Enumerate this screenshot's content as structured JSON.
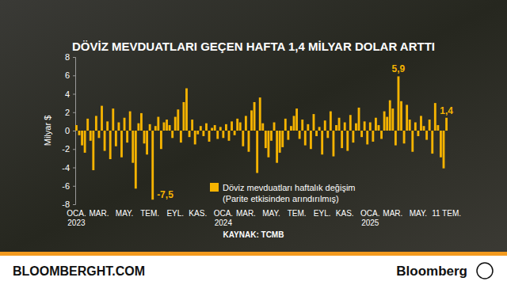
{
  "chart_data": {
    "type": "bar",
    "title": "DÖVİZ MEVDUATLARI GEÇEN HAFTA 1,4 MİLYAR DOLAR ARTTI",
    "y_label": "Milyar $",
    "source": "KAYNAK: TCMB",
    "branding": [
      "BLOOMBERGHT.COM",
      "Bloomberg"
    ],
    "annotations": [
      "(Parite etkisinden arındırılmış)"
    ],
    "categories": [
      "OCA. 2023",
      null,
      null,
      null,
      null,
      null,
      null,
      null,
      "MAR.",
      null,
      null,
      null,
      null,
      null,
      null,
      null,
      null,
      "MAY.",
      null,
      null,
      null,
      null,
      null,
      null,
      null,
      null,
      "TEM.",
      null,
      null,
      null,
      null,
      null,
      null,
      null,
      null,
      "EYL.",
      null,
      null,
      null,
      null,
      null,
      null,
      null,
      "KAS.",
      null,
      null,
      null,
      null,
      null,
      null,
      null,
      null,
      "OCA. 2024",
      null,
      null,
      null,
      null,
      null,
      null,
      null,
      "MAR.",
      null,
      null,
      null,
      null,
      null,
      null,
      null,
      null,
      "MAY.",
      null,
      null,
      null,
      null,
      null,
      null,
      null,
      null,
      "TEM.",
      null,
      null,
      null,
      null,
      null,
      null,
      null,
      null,
      "EYL.",
      null,
      null,
      null,
      null,
      null,
      null,
      null,
      "KAS.",
      null,
      null,
      null,
      null,
      null,
      null,
      null,
      null,
      "OCA. 2025",
      null,
      null,
      null,
      null,
      null,
      null,
      null,
      "MAR.",
      null,
      null,
      null,
      null,
      null,
      null,
      null,
      null,
      "MAY.",
      null,
      null,
      null,
      null,
      null,
      null,
      null,
      null,
      null,
      "11 TEM."
    ],
    "series": [
      {
        "name": "Döviz mevduatları haftalık değişim",
        "color": "#f5b301",
        "values": [
          0.6,
          -0.5,
          -1.6,
          -2.4,
          1.3,
          -1.1,
          -4.3,
          1.6,
          -0.8,
          2.7,
          -2.2,
          1.0,
          -3.1,
          2.4,
          -1.7,
          0.9,
          -2.9,
          1.4,
          -1.3,
          2.1,
          -3.5,
          -6.3,
          0.8,
          1.9,
          -1.4,
          -2.6,
          0.7,
          -7.5,
          0.5,
          1.5,
          -2.0,
          0.9,
          1.2,
          0.6,
          -0.8,
          1.5,
          2.3,
          -1.3,
          3.1,
          4.6,
          -0.7,
          1.2,
          -1.5,
          -0.4,
          0.5,
          -0.6,
          0.8,
          -1.2,
          0.3,
          0.6,
          -0.9,
          0.4,
          -0.8,
          0.7,
          -1.1,
          1.0,
          -0.5,
          1.3,
          0.9,
          -1.7,
          1.6,
          -2.3,
          2.2,
          3.1,
          -4.6,
          3.6,
          0.8,
          -1.9,
          -2.9,
          -1.1,
          0.9,
          -3.5,
          -2.4,
          -1.8,
          1.3,
          -1.0,
          0.5,
          1.6,
          2.4,
          -0.9,
          1.2,
          -1.6,
          0.7,
          -2.0,
          1.8,
          -0.6,
          0.4,
          -2.6,
          1.1,
          -0.8,
          2.1,
          -2.8,
          0.6,
          1.4,
          -1.9,
          0.9,
          -2.2,
          1.7,
          -1.3,
          0.8,
          2.5,
          -0.7,
          1.0,
          -1.5,
          0.9,
          -1.2,
          1.4,
          0.6,
          -0.9,
          2.1,
          1.5,
          3.3,
          2.4,
          -1.6,
          5.9,
          3.2,
          -1.4,
          2.8,
          1.2,
          -2.3,
          0.9,
          -0.6,
          1.6,
          0.5,
          -1.0,
          1.2,
          -2.5,
          3.0,
          0.6,
          -2.9,
          -4.1,
          1.4
        ],
        "value_labels": [
          null,
          null,
          null,
          null,
          null,
          null,
          null,
          null,
          null,
          null,
          null,
          null,
          null,
          null,
          null,
          null,
          null,
          null,
          null,
          null,
          null,
          null,
          null,
          null,
          null,
          null,
          null,
          "-7,5",
          null,
          null,
          null,
          null,
          null,
          null,
          null,
          null,
          null,
          null,
          null,
          null,
          null,
          null,
          null,
          null,
          null,
          null,
          null,
          null,
          null,
          null,
          null,
          null,
          null,
          null,
          null,
          null,
          null,
          null,
          null,
          null,
          null,
          null,
          null,
          null,
          null,
          null,
          null,
          null,
          null,
          null,
          null,
          null,
          null,
          null,
          null,
          null,
          null,
          null,
          null,
          null,
          null,
          null,
          null,
          null,
          null,
          null,
          null,
          null,
          null,
          null,
          null,
          null,
          null,
          null,
          null,
          null,
          null,
          null,
          null,
          null,
          null,
          null,
          null,
          null,
          null,
          null,
          null,
          null,
          null,
          null,
          null,
          null,
          null,
          null,
          "5,9",
          null,
          null,
          null,
          null,
          null,
          null,
          null,
          null,
          null,
          null,
          null,
          null,
          null,
          null,
          null,
          null,
          "1,4"
        ]
      }
    ],
    "ylim": [
      -8,
      8
    ],
    "yticks": [
      -8,
      -6,
      -4,
      -2,
      0,
      2,
      4,
      6,
      8
    ],
    "grid": false
  }
}
